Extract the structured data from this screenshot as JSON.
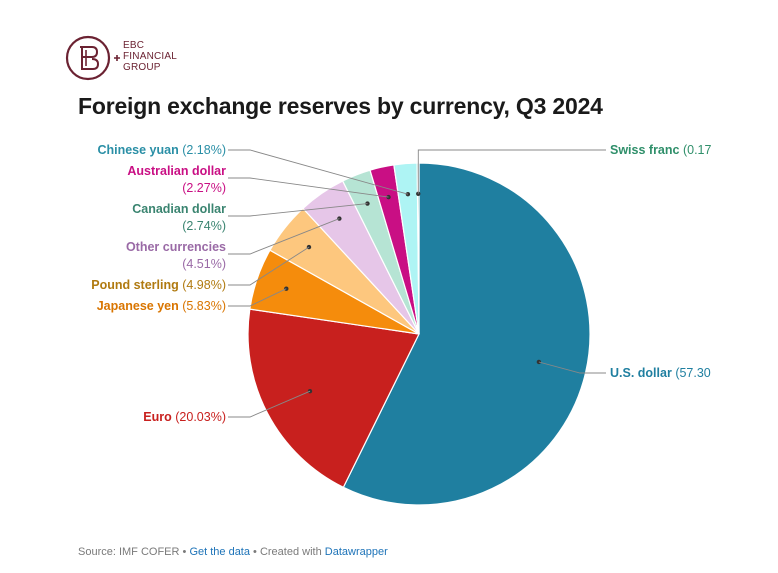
{
  "logo": {
    "icon": "ebc-monogram-icon",
    "lines": [
      "EBC",
      "FINANCIAL",
      "GROUP"
    ],
    "color": "#6b2232"
  },
  "chart_data": {
    "type": "pie",
    "title": "Foreign exchange reserves by currency, Q3 2024",
    "slices": [
      {
        "name": "U.S. dollar",
        "value": 57.3,
        "label": "(57.30",
        "color": "#1f7fa0",
        "text_color": "#1f7fa0",
        "side": "right"
      },
      {
        "name": "Euro",
        "value": 20.03,
        "label": "(20.03%)",
        "color": "#c8201e",
        "text_color": "#c8201e",
        "side": "left"
      },
      {
        "name": "Japanese yen",
        "value": 5.83,
        "label": "(5.83%)",
        "color": "#f58c0c",
        "text_color": "#d97500",
        "side": "left"
      },
      {
        "name": "Pound sterling",
        "value": 4.98,
        "label": "(4.98%)",
        "color": "#fdc77e",
        "text_color": "#b07a10",
        "side": "left"
      },
      {
        "name": "Other currencies",
        "value": 4.51,
        "label": "(4.51%)",
        "color": "#e6c6e8",
        "text_color": "#9a6aa6",
        "side": "left"
      },
      {
        "name": "Canadian dollar",
        "value": 2.74,
        "label": "(2.74%)",
        "color": "#b6e4d4",
        "text_color": "#3a8470",
        "side": "left"
      },
      {
        "name": "Australian dollar",
        "value": 2.27,
        "label": "(2.27%)",
        "color": "#c90f84",
        "text_color": "#c90f84",
        "side": "left"
      },
      {
        "name": "Chinese yuan",
        "value": 2.18,
        "label": "(2.18%)",
        "color": "#aef4f4",
        "text_color": "#2a8fa6",
        "side": "left"
      },
      {
        "name": "Swiss franc",
        "value": 0.17,
        "label": "(0.17",
        "color": "#44b6a0",
        "text_color": "#2f8f6a",
        "side": "right"
      }
    ],
    "legend": "none"
  },
  "footer": {
    "source": "Source: IMF COFER",
    "separator": " • ",
    "get_data": "Get the data",
    "created_with": "Created with",
    "tool": "Datawrapper"
  }
}
